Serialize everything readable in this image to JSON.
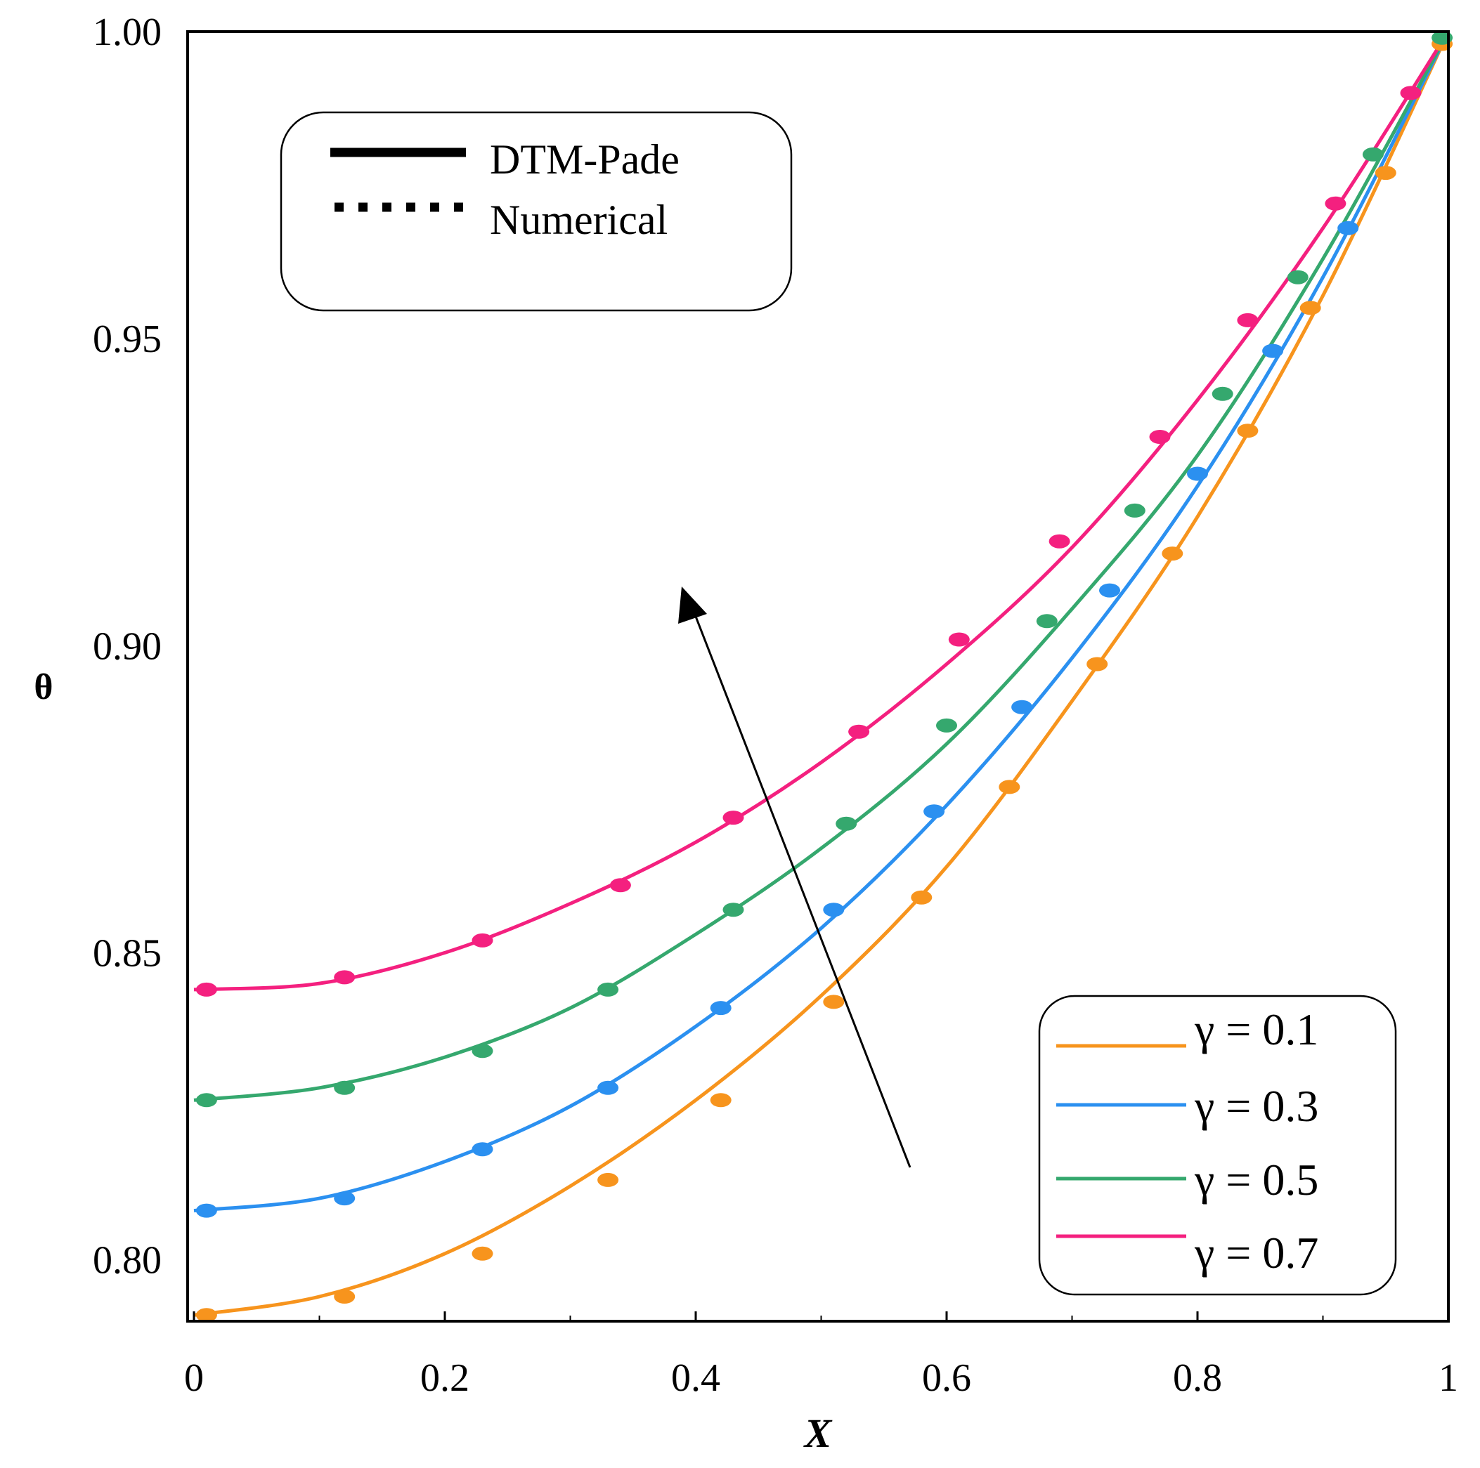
{
  "chart_data": {
    "type": "line",
    "title": "",
    "xlabel": "X",
    "ylabel": "θ",
    "xlim": [
      0,
      1
    ],
    "ylim": [
      0.79,
      1.0
    ],
    "xticks": [
      "0",
      "0.2",
      "0.4",
      "0.6",
      "0.8",
      "1"
    ],
    "yticks": [
      "0.80",
      "0.85",
      "0.90",
      "0.95",
      "1.00"
    ],
    "grid": false,
    "legend_method": {
      "placement": "top-left",
      "entries": [
        {
          "label": "DTM-Pade",
          "style": "solid"
        },
        {
          "label": "Numerical",
          "style": "dotted"
        }
      ]
    },
    "legend_series": {
      "placement": "bottom-right"
    },
    "annotation": "arrow indicating increasing γ",
    "series": [
      {
        "name": "γ = 0.1",
        "color": "#f7941d",
        "x": [
          0,
          0.1,
          0.2,
          0.3,
          0.4,
          0.5,
          0.6,
          0.7,
          0.8,
          0.9,
          1.0
        ],
        "y": [
          0.791,
          0.794,
          0.801,
          0.812,
          0.826,
          0.843,
          0.864,
          0.891,
          0.921,
          0.957,
          1.0
        ],
        "markers_x": [
          0.01,
          0.12,
          0.23,
          0.33,
          0.42,
          0.51,
          0.58,
          0.65,
          0.72,
          0.78,
          0.84,
          0.89,
          0.95,
          0.995
        ],
        "markers_y": [
          0.791,
          0.794,
          0.801,
          0.813,
          0.826,
          0.842,
          0.859,
          0.877,
          0.897,
          0.915,
          0.935,
          0.955,
          0.977,
          0.998
        ]
      },
      {
        "name": "γ = 0.3",
        "color": "#2b90f0",
        "x": [
          0,
          0.1,
          0.2,
          0.3,
          0.4,
          0.5,
          0.6,
          0.7,
          0.8,
          0.9,
          1.0
        ],
        "y": [
          0.808,
          0.81,
          0.816,
          0.825,
          0.838,
          0.854,
          0.874,
          0.898,
          0.926,
          0.96,
          1.0
        ],
        "markers_x": [
          0.01,
          0.12,
          0.23,
          0.33,
          0.42,
          0.51,
          0.59,
          0.66,
          0.73,
          0.8,
          0.86,
          0.92
        ],
        "markers_y": [
          0.808,
          0.81,
          0.818,
          0.828,
          0.841,
          0.857,
          0.873,
          0.89,
          0.909,
          0.928,
          0.948,
          0.968
        ]
      },
      {
        "name": "γ = 0.5",
        "color": "#35a86e",
        "x": [
          0,
          0.1,
          0.2,
          0.3,
          0.4,
          0.5,
          0.6,
          0.7,
          0.8,
          0.9,
          1.0
        ],
        "y": [
          0.826,
          0.828,
          0.833,
          0.841,
          0.853,
          0.867,
          0.884,
          0.906,
          0.931,
          0.963,
          1.0
        ],
        "markers_x": [
          0.01,
          0.12,
          0.23,
          0.33,
          0.43,
          0.52,
          0.6,
          0.68,
          0.75,
          0.82,
          0.88,
          0.94,
          0.995
        ],
        "markers_y": [
          0.826,
          0.828,
          0.834,
          0.844,
          0.857,
          0.871,
          0.887,
          0.904,
          0.922,
          0.941,
          0.96,
          0.98,
          0.999
        ]
      },
      {
        "name": "γ = 0.7",
        "color": "#f4207f",
        "x": [
          0,
          0.1,
          0.2,
          0.3,
          0.4,
          0.5,
          0.6,
          0.7,
          0.8,
          0.9,
          1.0
        ],
        "y": [
          0.844,
          0.845,
          0.85,
          0.858,
          0.868,
          0.881,
          0.897,
          0.916,
          0.94,
          0.968,
          1.0
        ],
        "markers_x": [
          0.01,
          0.12,
          0.23,
          0.34,
          0.43,
          0.53,
          0.61,
          0.69,
          0.77,
          0.84,
          0.91,
          0.97
        ],
        "markers_y": [
          0.844,
          0.846,
          0.852,
          0.861,
          0.872,
          0.886,
          0.901,
          0.917,
          0.934,
          0.953,
          0.972,
          0.99
        ]
      }
    ]
  }
}
